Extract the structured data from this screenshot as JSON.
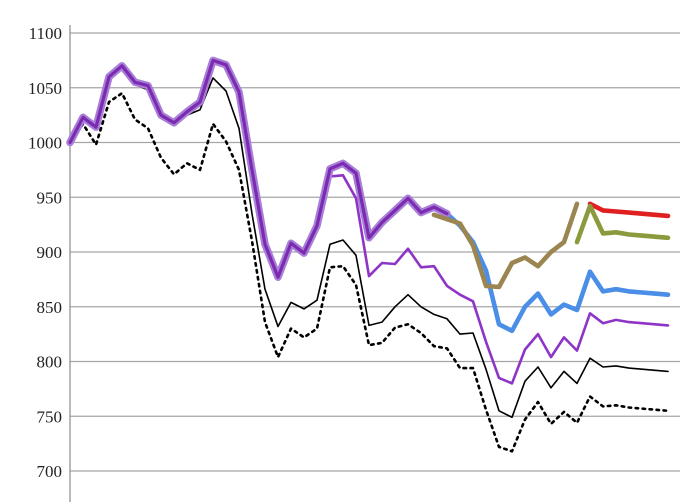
{
  "chart_data": {
    "type": "line",
    "title": "",
    "xlabel": "",
    "ylabel": "",
    "ylim": [
      700,
      1100
    ],
    "y_ticks": [
      "1100",
      "1050",
      "1000",
      "950",
      "900",
      "850",
      "800",
      "750",
      "700"
    ],
    "y_tick_values": [
      1100,
      1050,
      1000,
      950,
      900,
      850,
      800,
      750,
      700
    ],
    "x_count": 47,
    "grid": true,
    "legend": "none",
    "series": [
      {
        "color": "#000000",
        "style": "dotted",
        "values": [
          999,
          1017,
          998,
          1037,
          1045,
          1021,
          1013,
          986,
          971,
          981,
          975,
          1017,
          1001,
          975,
          910,
          836,
          804,
          830,
          822,
          830,
          886,
          887,
          870,
          815,
          817,
          831,
          834,
          826,
          814,
          812,
          794,
          794,
          756,
          722,
          718,
          747,
          763,
          743,
          754,
          744,
          768,
          759,
          760,
          758,
          757,
          756,
          755
        ]
      },
      {
        "color": "#000000",
        "style": "thin",
        "values": [
          999,
          1022,
          1013,
          1058,
          1068,
          1053,
          1048,
          1025,
          1016,
          1025,
          1030,
          1059,
          1047,
          1013,
          935,
          866,
          832,
          854,
          848,
          856,
          907,
          911,
          897,
          833,
          836,
          850,
          861,
          850,
          843,
          839,
          825,
          826,
          793,
          755,
          749,
          782,
          795,
          776,
          791,
          780,
          803,
          795,
          796,
          794,
          793,
          792,
          791
        ]
      },
      {
        "color": "#8e35c8",
        "style": "medium",
        "values": [
          1000,
          1023,
          1014,
          1060,
          1070,
          1055,
          1051,
          1025,
          1018,
          1027,
          1035,
          1074,
          1069,
          1044,
          970,
          905,
          877,
          907,
          898,
          922,
          969,
          970,
          949,
          878,
          890,
          889,
          903,
          886,
          887,
          869,
          861,
          855,
          818,
          785,
          780,
          811,
          825,
          804,
          822,
          810,
          844,
          835,
          838,
          836,
          835,
          834,
          833
        ]
      },
      {
        "color": "#4a8ee8",
        "style": "thick",
        "values": [
          null,
          null,
          null,
          null,
          null,
          null,
          null,
          null,
          null,
          null,
          null,
          null,
          null,
          null,
          null,
          null,
          null,
          null,
          null,
          null,
          null,
          null,
          null,
          913,
          927,
          938,
          949,
          936,
          941,
          935,
          924,
          909,
          883,
          834,
          828,
          850,
          862,
          843,
          852,
          847,
          882,
          864,
          866,
          864,
          863,
          862,
          861
        ]
      },
      {
        "color": "#7c2bb0",
        "style": "glow",
        "values": [
          1000,
          1023,
          1014,
          1060,
          1070,
          1055,
          1052,
          1025,
          1018,
          1028,
          1037,
          1075,
          1071,
          1046,
          975,
          907,
          877,
          908,
          899,
          924,
          976,
          981,
          972,
          913,
          927,
          938,
          949,
          936,
          941,
          935,
          null,
          null,
          null,
          null,
          null,
          null,
          null,
          null,
          null,
          null,
          null,
          null,
          null,
          null,
          null,
          null,
          null
        ]
      },
      {
        "color": "#e02020",
        "style": "thick",
        "values": [
          null,
          null,
          null,
          null,
          null,
          null,
          null,
          null,
          null,
          null,
          null,
          null,
          null,
          null,
          null,
          null,
          null,
          null,
          null,
          null,
          null,
          null,
          null,
          null,
          null,
          null,
          null,
          null,
          null,
          null,
          null,
          null,
          null,
          null,
          null,
          null,
          null,
          null,
          null,
          null,
          944,
          938,
          937,
          936,
          935,
          934,
          933
        ]
      },
      {
        "color": "#8a9a3c",
        "style": "thick",
        "values": [
          null,
          null,
          null,
          null,
          null,
          null,
          null,
          null,
          null,
          null,
          null,
          null,
          null,
          null,
          null,
          null,
          null,
          null,
          null,
          null,
          null,
          null,
          null,
          null,
          null,
          null,
          null,
          null,
          null,
          null,
          null,
          null,
          null,
          null,
          null,
          null,
          null,
          null,
          null,
          909,
          942,
          917,
          918,
          916,
          915,
          914,
          913
        ]
      },
      {
        "color": "#9b8550",
        "style": "thick",
        "values": [
          null,
          null,
          null,
          null,
          null,
          null,
          null,
          null,
          null,
          null,
          null,
          null,
          null,
          null,
          null,
          null,
          null,
          null,
          null,
          null,
          null,
          null,
          null,
          null,
          null,
          null,
          null,
          null,
          934,
          930,
          926,
          906,
          869,
          868,
          890,
          895,
          887,
          900,
          909,
          944,
          null,
          null,
          null,
          null,
          null,
          null,
          null
        ]
      }
    ]
  }
}
